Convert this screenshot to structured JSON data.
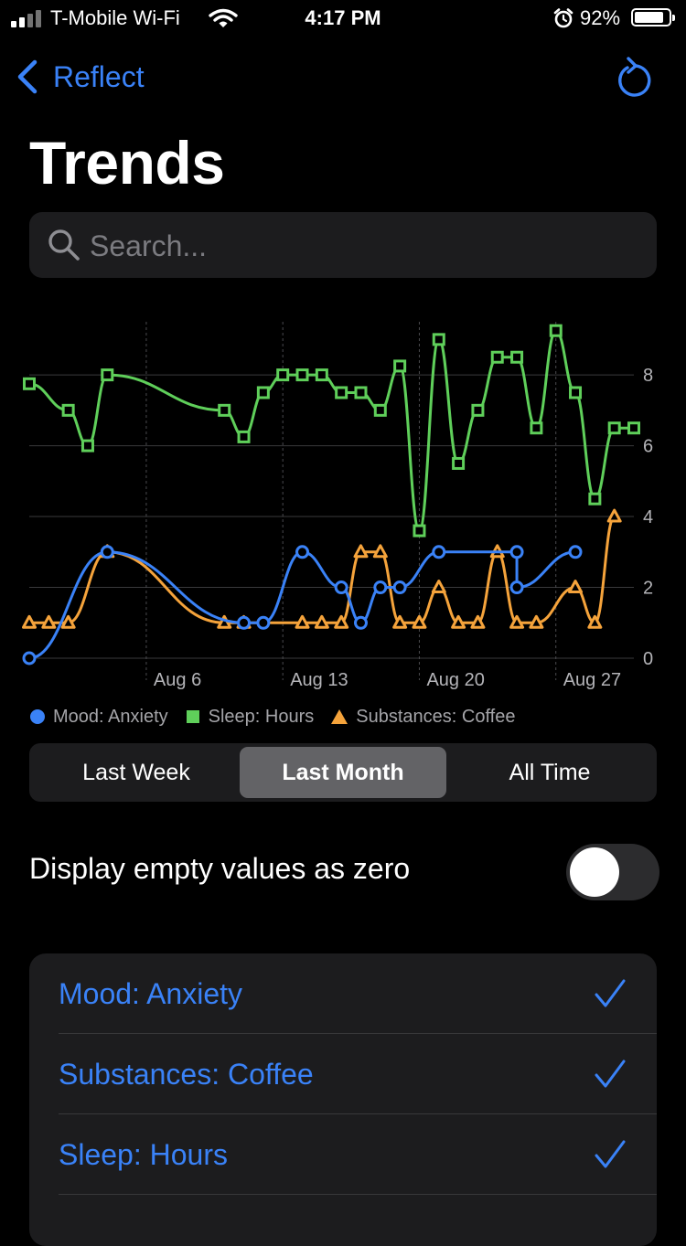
{
  "status_bar": {
    "carrier": "T-Mobile Wi-Fi",
    "time": "4:17 PM",
    "battery": "92%",
    "battery_level": 0.92,
    "icons": [
      "signal-icon",
      "wifi-icon",
      "alarm-icon",
      "battery-icon"
    ]
  },
  "nav": {
    "back_label": "Reflect",
    "back_icon": "chevron-left-icon",
    "refresh_icon": "refresh-icon"
  },
  "page": {
    "title": "Trends"
  },
  "search": {
    "placeholder": "Search...",
    "value": ""
  },
  "colors": {
    "accent": "#3a82f7",
    "mood": "#3a82f7",
    "sleep": "#5fcf5a",
    "coffee": "#f5a33b",
    "grid": "#3a3a3c",
    "axis_text": "#b4b4b8"
  },
  "chart_data": {
    "type": "line",
    "title": "",
    "xlabel": "",
    "ylabel": "",
    "ylim": [
      0,
      9.5
    ],
    "xlim": [
      "Jul 31",
      "Aug 31"
    ],
    "y_ticks": [
      0,
      2,
      4,
      6,
      8
    ],
    "x_ticks": [
      "Aug 6",
      "Aug 13",
      "Aug 20",
      "Aug 27"
    ],
    "grid": "horizontal solid, vertical dashed",
    "y_axis_position": "right",
    "legend_position": "bottom",
    "series": [
      {
        "name": "Mood: Anxiety",
        "marker": "circle",
        "color": "#3a82f7",
        "x": [
          "Jul 31",
          "Aug 4",
          "Aug 11",
          "Aug 12",
          "Aug 14",
          "Aug 16",
          "Aug 17",
          "Aug 18",
          "Aug 19",
          "Aug 21",
          "Aug 25",
          "Aug 25",
          "Aug 28"
        ],
        "y": [
          0,
          3,
          1,
          1,
          3,
          2,
          1,
          2,
          2,
          3,
          3,
          2,
          3
        ]
      },
      {
        "name": "Sleep: Hours",
        "marker": "square",
        "color": "#5fcf5a",
        "x": [
          "Jul 31",
          "Aug 2",
          "Aug 3",
          "Aug 4",
          "Aug 10",
          "Aug 11",
          "Aug 12",
          "Aug 13",
          "Aug 14",
          "Aug 15",
          "Aug 16",
          "Aug 17",
          "Aug 18",
          "Aug 19",
          "Aug 20",
          "Aug 21",
          "Aug 22",
          "Aug 23",
          "Aug 24",
          "Aug 25",
          "Aug 26",
          "Aug 27",
          "Aug 28",
          "Aug 29",
          "Aug 30",
          "Aug 31"
        ],
        "y": [
          7.75,
          7,
          6,
          8,
          7,
          6.25,
          7.5,
          8,
          8,
          8,
          7.5,
          7.5,
          7,
          8.25,
          3.6,
          9,
          5.5,
          7,
          8.5,
          8.5,
          6.5,
          9.25,
          7.5,
          4.5,
          6.5,
          6.5
        ]
      },
      {
        "name": "Substances: Coffee",
        "marker": "triangle",
        "color": "#f5a33b",
        "x": [
          "Jul 31",
          "Aug 1",
          "Aug 2",
          "Aug 4",
          "Aug 10",
          "Aug 11",
          "Aug 14",
          "Aug 15",
          "Aug 16",
          "Aug 17",
          "Aug 18",
          "Aug 19",
          "Aug 20",
          "Aug 21",
          "Aug 22",
          "Aug 23",
          "Aug 24",
          "Aug 25",
          "Aug 26",
          "Aug 28",
          "Aug 29",
          "Aug 30"
        ],
        "y": [
          1,
          1,
          1,
          3,
          1,
          1,
          1,
          1,
          1,
          3,
          3,
          1,
          1,
          2,
          1,
          1,
          3,
          1,
          1,
          2,
          1,
          4
        ]
      }
    ]
  },
  "range_picker": {
    "options": [
      "Last Week",
      "Last Month",
      "All Time"
    ],
    "selected": "Last Month"
  },
  "empty_toggle": {
    "label": "Display empty values as zero",
    "on": false
  },
  "metric_list": {
    "items": [
      {
        "label": "Mood: Anxiety",
        "checked": true,
        "icon": "checkmark-icon"
      },
      {
        "label": "Substances: Coffee",
        "checked": true,
        "icon": "checkmark-icon"
      },
      {
        "label": "Sleep: Hours",
        "checked": true,
        "icon": "checkmark-icon"
      }
    ]
  }
}
